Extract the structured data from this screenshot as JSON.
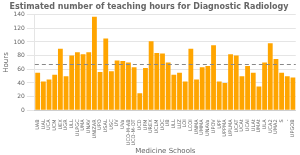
{
  "chart_data": {
    "type": "bar",
    "title": "Estimated number of teaching hours for Diagnostic Radiology",
    "xlabel": "Medicine Schools",
    "ylabel": "Hours",
    "categories": [
      "UAB",
      "UAL",
      "UCA",
      "UCM",
      "UEX",
      "UGR",
      "ULL",
      "ULPGC",
      "UMA",
      "UNAV",
      "UNIZAR",
      "UPO",
      "USAL",
      "USC",
      "UV",
      "UVa",
      "UCO-M-AB",
      "UCO-M-OT",
      "UCD",
      "UFM",
      "UREX",
      "UCLM",
      "UOC",
      "UB",
      "ULL",
      "LUZ",
      "LOI",
      "LCOl",
      "UNMA",
      "UMMA",
      "UNAVa",
      "UPOV",
      "UPF",
      "UPPMA",
      "UPLMA",
      "UCAT",
      "UCAt",
      "UCAl",
      "ULAt",
      "UMAt",
      "ULA",
      "UCA2",
      "UMA2",
      "S",
      "-",
      "UPGOB"
    ],
    "values": [
      55,
      42,
      45,
      52,
      90,
      50,
      80,
      85,
      82,
      85,
      137,
      56,
      105,
      57,
      73,
      72,
      70,
      63,
      25,
      62,
      101,
      84,
      83,
      70,
      52,
      55,
      42,
      90,
      45,
      63,
      65,
      95,
      42,
      40,
      82,
      80,
      50,
      65,
      55,
      35,
      70,
      98,
      75,
      55,
      50,
      48
    ],
    "color": "#FFA500",
    "mean_line": {
      "value": 67.0,
      "color": "#888888",
      "line_style": "dashed"
    },
    "ylim": [
      0,
      140
    ],
    "yticks": [
      0,
      20,
      40,
      60,
      80,
      100,
      120,
      140
    ],
    "grid": "y"
  }
}
